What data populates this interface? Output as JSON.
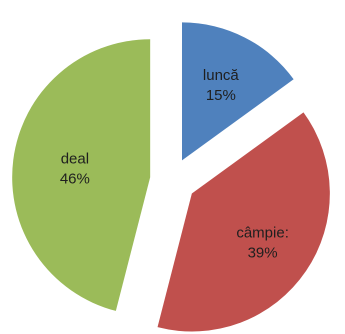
{
  "chart_data": {
    "type": "pie",
    "exploded": true,
    "slices": [
      {
        "label": "luncă",
        "percent_label": "15%",
        "value": 15,
        "color": "#4f81bd"
      },
      {
        "label": "câmpie:",
        "percent_label": "39%",
        "value": 39,
        "color": "#c0504d"
      },
      {
        "label": "deal",
        "percent_label": "46%",
        "value": 46,
        "color": "#9bbb59"
      }
    ],
    "legend": "none",
    "title": ""
  }
}
